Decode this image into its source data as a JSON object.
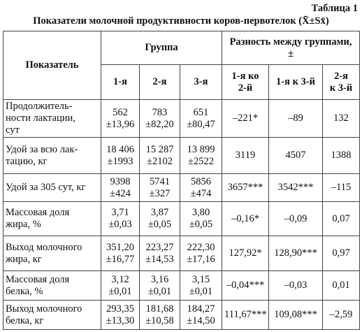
{
  "header": {
    "label": "Таблица 1",
    "title": "Показатели молочной продуктивности коров-первотелок (X̄±Sx̄)"
  },
  "table": {
    "columns": {
      "indicator": "Показатель",
      "group": "Группа",
      "difference": [
        "Разность между группами,",
        "±"
      ],
      "groups": [
        "1-я",
        "2-я",
        "3-я"
      ],
      "differences": [
        [
          "1-я ко",
          "2-й"
        ],
        "1-я к 3-й",
        [
          "2-я",
          "к 3-й"
        ]
      ]
    },
    "rows": [
      [
        [
          "Продолжитель-",
          "ности лактации,",
          "сут"
        ],
        [
          "562",
          "±13,96"
        ],
        [
          "783",
          "±82,20"
        ],
        [
          "651",
          "±80,47"
        ],
        "–221*",
        "–89",
        "132"
      ],
      [
        [
          "Удой за всю лак-",
          "тацию, кг"
        ],
        [
          "18 406",
          "±1993"
        ],
        [
          "15 287",
          "±2102"
        ],
        [
          "13 899",
          "±2522"
        ],
        "3119",
        "4507",
        "1388"
      ],
      [
        "Удой за 305 сут, кг",
        [
          "9398",
          "±424"
        ],
        [
          "5741",
          "±327"
        ],
        [
          "5856",
          "±474"
        ],
        "3657***",
        "3542***",
        "–115"
      ],
      [
        [
          "Массовая доля",
          "жира, %"
        ],
        [
          "3,71",
          "±0,03"
        ],
        [
          "3,87",
          "±0,05"
        ],
        [
          "3,80",
          "±0,05"
        ],
        "–0,16*",
        "–0,09",
        "0,07"
      ],
      [
        [
          "Выход молочного",
          "жира, кг"
        ],
        [
          "351,20",
          "±16,77"
        ],
        [
          "223,27",
          "±14,53"
        ],
        [
          "222,30",
          "±17,16"
        ],
        "127,92*",
        "128,90***",
        "0,97"
      ],
      [
        [
          "Массовая доля",
          "белка, %"
        ],
        [
          "3,12",
          "±0,01"
        ],
        [
          "3,16",
          "±0,01"
        ],
        [
          "3,15",
          "±0,01"
        ],
        "–0,04***",
        "–0,03",
        "0,01"
      ],
      [
        [
          "Выход молочного",
          "белка, кг"
        ],
        [
          "293,35",
          "±13,30"
        ],
        [
          "181,68",
          "±10,58"
        ],
        [
          "184,27",
          "±14,50"
        ],
        "111,67***",
        "109,08***",
        "–2,59"
      ]
    ]
  }
}
